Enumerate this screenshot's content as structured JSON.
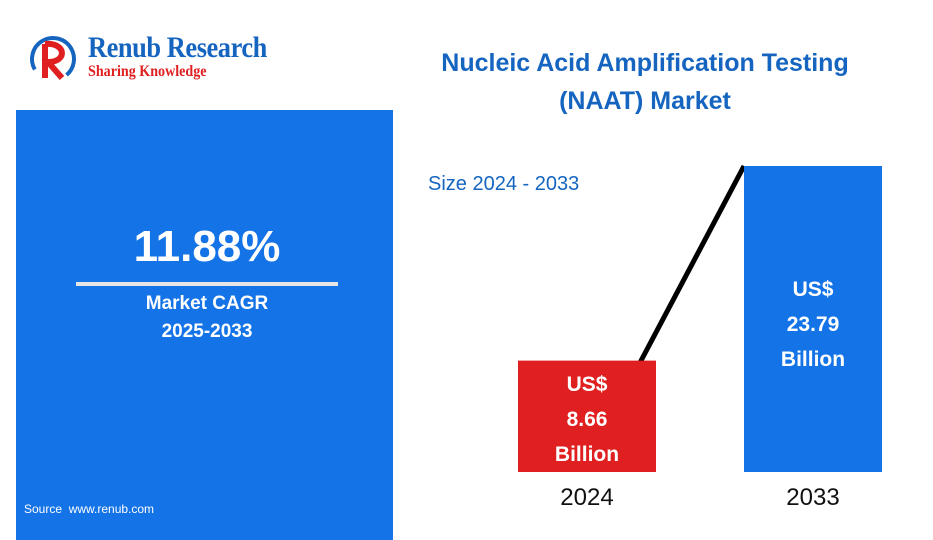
{
  "brand": {
    "name": "Renub Research",
    "tagline": "Sharing Knowledge",
    "colors": {
      "primary": "#1565c0",
      "accent": "#e02020"
    }
  },
  "title": "Nucleic Acid Amplification Testing (NAAT) Market",
  "cagr_panel": {
    "value": "11.88%",
    "label_line1": "Market CAGR",
    "label_line2": "2025-2033",
    "source": "Source  www.renub.com",
    "color": "#1473e6"
  },
  "chart_data": {
    "type": "bar",
    "subtitle": "Size 2024 - 2033",
    "categories": [
      "2024",
      "2033"
    ],
    "values": [
      8.66,
      23.79
    ],
    "unit": "US$ Billion",
    "bar_labels": [
      [
        "US$",
        "8.66",
        "Billion"
      ],
      [
        "US$",
        "23.79",
        "Billion"
      ]
    ],
    "bar_colors": [
      "#e02020",
      "#1473e6"
    ],
    "connector_line": true,
    "grid": false,
    "legend": "none"
  }
}
